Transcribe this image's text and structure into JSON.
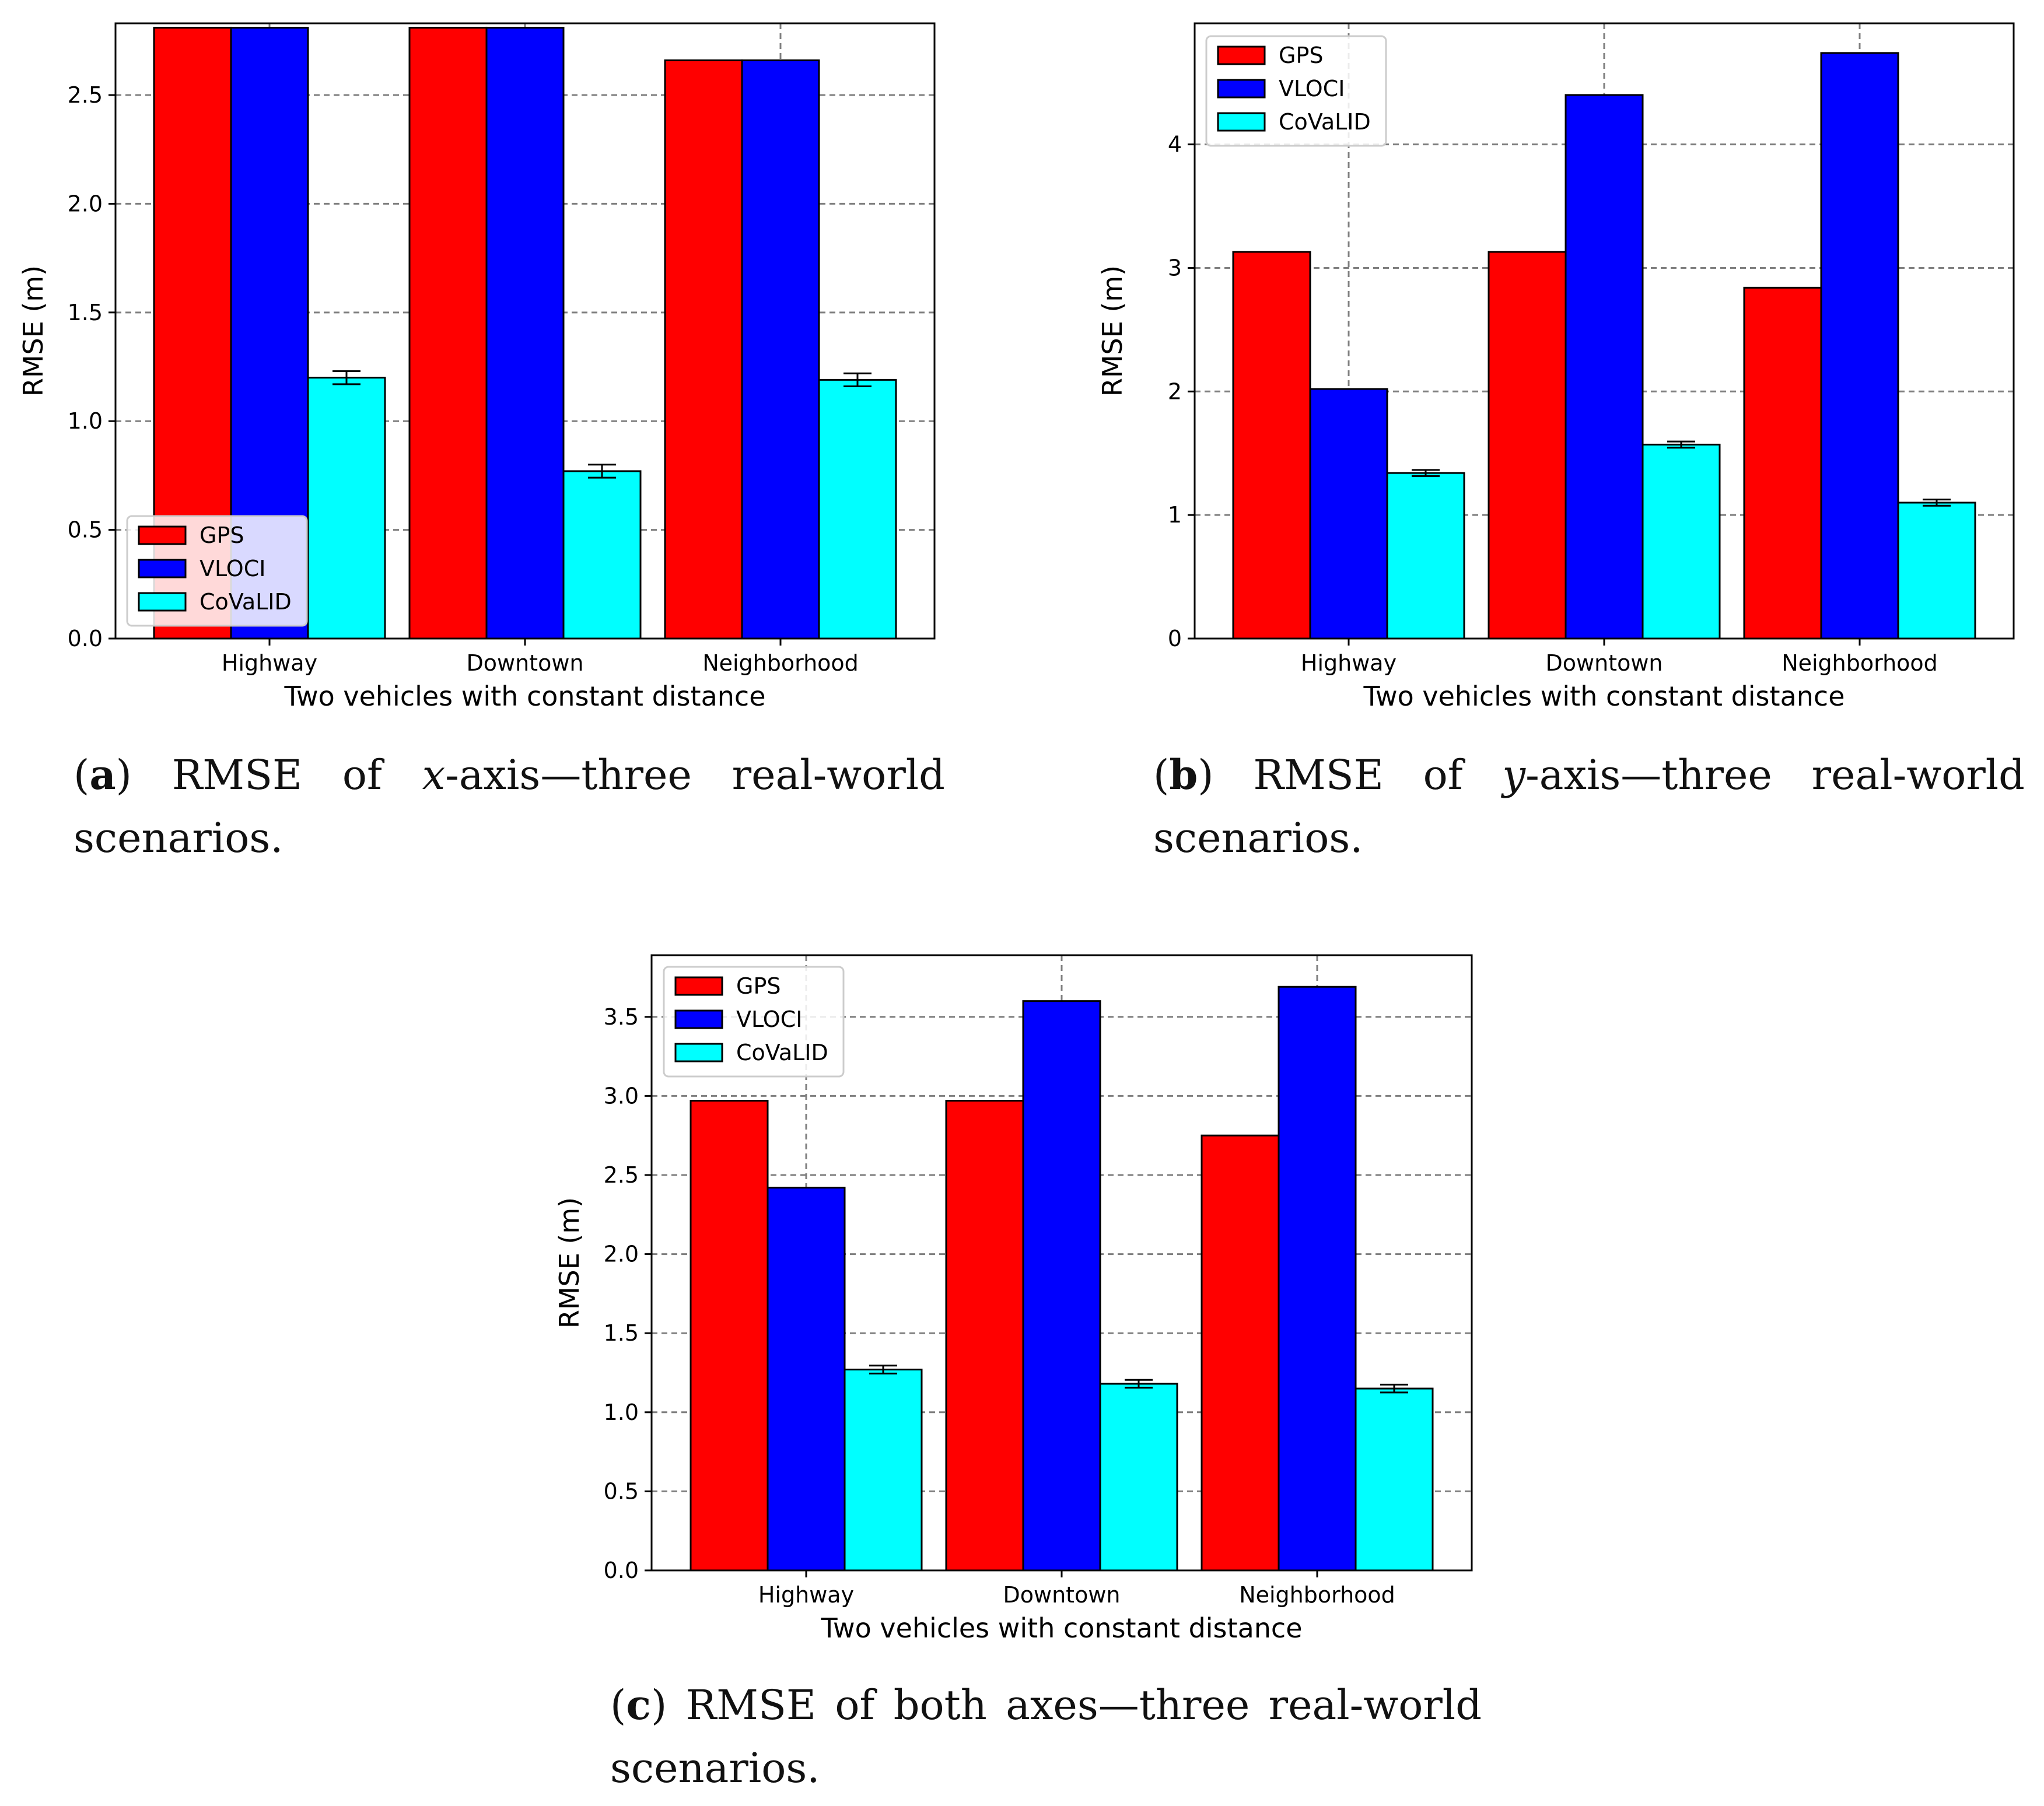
{
  "colors": {
    "GPS": "#ff0000",
    "VLOCI": "#0000ff",
    "CoVaLID": "#00ffff",
    "grid": "#7f7f7f"
  },
  "chart_data": [
    {
      "id": "a",
      "type": "bar",
      "title": "",
      "xlabel": "Two vehicles with constant distance",
      "ylabel": "RMSE (m)",
      "categories": [
        "Highway",
        "Downtown",
        "Neighborhood"
      ],
      "ylim": [
        0,
        2.83
      ],
      "yticks": [
        0.0,
        0.5,
        1.0,
        1.5,
        2.0,
        2.5
      ],
      "ytick_labels": [
        "0.0",
        "0.5",
        "1.0",
        "1.5",
        "2.0",
        "2.5"
      ],
      "legend_position": "lower-left",
      "series": [
        {
          "name": "GPS",
          "values": [
            2.81,
            2.81,
            2.66
          ],
          "errors": [
            0,
            0,
            0
          ]
        },
        {
          "name": "VLOCI",
          "values": [
            2.81,
            2.81,
            2.66
          ],
          "errors": [
            0,
            0,
            0
          ]
        },
        {
          "name": "CoVaLID",
          "values": [
            1.2,
            0.77,
            1.19
          ],
          "errors": [
            0.03,
            0.03,
            0.03
          ]
        }
      ],
      "caption": {
        "tag": "a",
        "pre": "RMSE of ",
        "axis": "x",
        "post": "-axis—three real-world",
        "line2": "scenarios."
      }
    },
    {
      "id": "b",
      "type": "bar",
      "title": "",
      "xlabel": "Two vehicles with constant distance",
      "ylabel": "RMSE (m)",
      "categories": [
        "Highway",
        "Downtown",
        "Neighborhood"
      ],
      "ylim": [
        0,
        4.98
      ],
      "yticks": [
        0,
        1,
        2,
        3,
        4
      ],
      "ytick_labels": [
        "0",
        "1",
        "2",
        "3",
        "4"
      ],
      "legend_position": "upper-left",
      "series": [
        {
          "name": "GPS",
          "values": [
            3.13,
            3.13,
            2.84
          ],
          "errors": [
            0,
            0,
            0
          ]
        },
        {
          "name": "VLOCI",
          "values": [
            2.02,
            4.4,
            4.74
          ],
          "errors": [
            0,
            0,
            0
          ]
        },
        {
          "name": "CoVaLID",
          "values": [
            1.34,
            1.57,
            1.1
          ],
          "errors": [
            0.025,
            0.025,
            0.025
          ]
        }
      ],
      "caption": {
        "tag": "b",
        "pre": "RMSE of ",
        "axis": "y",
        "post": "-axis—three real-world",
        "line2": "scenarios."
      }
    },
    {
      "id": "c",
      "type": "bar",
      "title": "",
      "xlabel": "Two vehicles with constant distance",
      "ylabel": "RMSE (m)",
      "categories": [
        "Highway",
        "Downtown",
        "Neighborhood"
      ],
      "ylim": [
        0,
        3.89
      ],
      "yticks": [
        0.0,
        0.5,
        1.0,
        1.5,
        2.0,
        2.5,
        3.0,
        3.5
      ],
      "ytick_labels": [
        "0.0",
        "0.5",
        "1.0",
        "1.5",
        "2.0",
        "2.5",
        "3.0",
        "3.5"
      ],
      "legend_position": "upper-left",
      "series": [
        {
          "name": "GPS",
          "values": [
            2.97,
            2.97,
            2.75
          ],
          "errors": [
            0,
            0,
            0
          ]
        },
        {
          "name": "VLOCI",
          "values": [
            2.42,
            3.6,
            3.69
          ],
          "errors": [
            0,
            0,
            0
          ]
        },
        {
          "name": "CoVaLID",
          "values": [
            1.27,
            1.18,
            1.15
          ],
          "errors": [
            0.025,
            0.025,
            0.025
          ]
        }
      ],
      "caption": {
        "tag": "c",
        "pre": "RMSE of both axes—three real-world",
        "axis": "",
        "post": "",
        "line2": "scenarios."
      }
    }
  ]
}
